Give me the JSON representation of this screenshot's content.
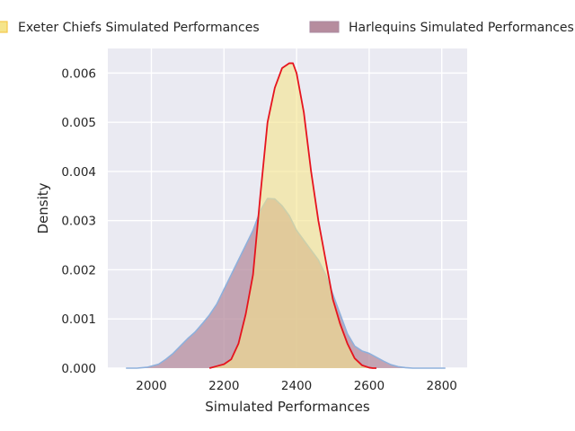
{
  "chart_data": {
    "type": "area",
    "xlabel": "Simulated Performances",
    "ylabel": "Density",
    "xlim": [
      1880,
      2870
    ],
    "ylim": [
      0,
      0.0065
    ],
    "x_ticks": [
      2000,
      2200,
      2400,
      2600,
      2800
    ],
    "y_ticks": [
      0.0,
      0.001,
      0.002,
      0.003,
      0.004,
      0.005,
      0.006
    ],
    "y_tick_labels": [
      "0.000",
      "0.001",
      "0.002",
      "0.003",
      "0.004",
      "0.005",
      "0.006"
    ],
    "grid": true,
    "legend_placement": "top",
    "background": "#eaeaf2",
    "series": [
      {
        "name": "Exeter Chiefs Simulated Performances",
        "fill": "#f5e48a",
        "line": "#e6141e",
        "x": [
          2160,
          2180,
          2200,
          2220,
          2240,
          2260,
          2280,
          2300,
          2320,
          2340,
          2360,
          2380,
          2390,
          2400,
          2420,
          2440,
          2460,
          2480,
          2500,
          2520,
          2540,
          2560,
          2580,
          2600,
          2610,
          2620
        ],
        "y": [
          0.0,
          4e-05,
          8e-05,
          0.00018,
          0.0005,
          0.0011,
          0.0019,
          0.0035,
          0.005,
          0.0057,
          0.0061,
          0.0062,
          0.0062,
          0.006,
          0.0052,
          0.004,
          0.003,
          0.0022,
          0.0014,
          0.0009,
          0.0005,
          0.0002,
          6e-05,
          1e-05,
          0.0,
          0.0
        ]
      },
      {
        "name": "Harlequins Simulated Performances",
        "fill": "#b68c9e",
        "line": "#8eb0dc",
        "x": [
          1930,
          1960,
          1990,
          2020,
          2040,
          2060,
          2080,
          2100,
          2120,
          2140,
          2160,
          2180,
          2200,
          2220,
          2240,
          2260,
          2280,
          2300,
          2320,
          2340,
          2360,
          2380,
          2400,
          2420,
          2440,
          2460,
          2480,
          2500,
          2520,
          2540,
          2560,
          2580,
          2600,
          2620,
          2640,
          2660,
          2680,
          2700,
          2720,
          2740,
          2780,
          2810
        ],
        "y": [
          0.0,
          0.0,
          2e-05,
          8e-05,
          0.00018,
          0.0003,
          0.00045,
          0.0006,
          0.00073,
          0.0009,
          0.00108,
          0.0013,
          0.0016,
          0.0019,
          0.0022,
          0.0025,
          0.0028,
          0.0032,
          0.00345,
          0.00344,
          0.0033,
          0.0031,
          0.0028,
          0.0026,
          0.0024,
          0.0022,
          0.0019,
          0.0015,
          0.0011,
          0.0007,
          0.00045,
          0.00035,
          0.0003,
          0.00022,
          0.00014,
          7e-05,
          3e-05,
          1e-05,
          0.0,
          0.0,
          0.0,
          0.0
        ]
      }
    ]
  }
}
